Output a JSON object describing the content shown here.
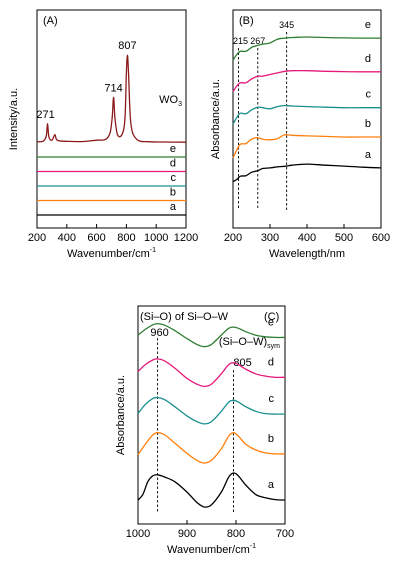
{
  "colors": {
    "a": "#000000",
    "b": "#ff7f0e",
    "c": "#1a8f8f",
    "d": "#e6197a",
    "e": "#2e7d32",
    "wo3": "#8b1a1a"
  },
  "chart_data": [
    {
      "panel": "(A)",
      "type": "line",
      "xlabel": "Wavenumber/cm",
      "xlabel_sup": "-1",
      "ylabel": "Intensity/a.u.",
      "xlim": [
        200,
        1200
      ],
      "xticks": [
        200,
        400,
        600,
        800,
        1000,
        1200
      ],
      "legend": "none",
      "peak_labels": [
        {
          "x": 271,
          "label": "271"
        },
        {
          "x": 714,
          "label": "714"
        },
        {
          "x": 807,
          "label": "807"
        }
      ],
      "series": [
        {
          "name": "WO",
          "name_sub": "3",
          "color_key": "wo3",
          "offset": 5,
          "x": [
            200,
            240,
            262,
            271,
            280,
            300,
            320,
            330,
            350,
            400,
            500,
            600,
            660,
            690,
            705,
            714,
            723,
            740,
            770,
            790,
            800,
            807,
            814,
            830,
            870,
            950,
            1050,
            1200
          ],
          "y": [
            0.05,
            0.08,
            0.4,
            1.2,
            0.35,
            0.15,
            0.5,
            0.2,
            0.1,
            0.08,
            0.06,
            0.15,
            0.2,
            0.6,
            1.6,
            2.9,
            1.6,
            0.5,
            0.5,
            1.5,
            4.5,
            5.6,
            4.5,
            1.2,
            0.2,
            0.05,
            0.03,
            0.02
          ]
        },
        {
          "name": "e",
          "color_key": "e",
          "offset": 4,
          "x": [
            200,
            1200
          ],
          "y": [
            0,
            0
          ]
        },
        {
          "name": "d",
          "color_key": "d",
          "offset": 3,
          "x": [
            200,
            1200
          ],
          "y": [
            0,
            0
          ]
        },
        {
          "name": "c",
          "color_key": "c",
          "offset": 2,
          "x": [
            200,
            1200
          ],
          "y": [
            0,
            0
          ]
        },
        {
          "name": "b",
          "color_key": "b",
          "offset": 1,
          "x": [
            200,
            1200
          ],
          "y": [
            0,
            0
          ]
        },
        {
          "name": "a",
          "color_key": "a",
          "offset": 0,
          "x": [
            200,
            1200
          ],
          "y": [
            0,
            0
          ]
        }
      ]
    },
    {
      "panel": "(B)",
      "type": "line",
      "xlabel": "Wavelength/nm",
      "ylabel": "Absorbance/a.u.",
      "xlim": [
        200,
        600
      ],
      "xticks": [
        200,
        300,
        400,
        500,
        600
      ],
      "legend": "none",
      "vlines": [
        {
          "x": 215,
          "label": "215"
        },
        {
          "x": 267,
          "label": "267"
        },
        {
          "x": 345,
          "label": "345"
        }
      ],
      "series": [
        {
          "name": "e",
          "color_key": "e",
          "offset": 4,
          "x": [
            200,
            210,
            220,
            235,
            250,
            267,
            280,
            300,
            320,
            340,
            360,
            400,
            450,
            500,
            550,
            600
          ],
          "y": [
            -1.1,
            -0.6,
            -0.3,
            -0.3,
            0.05,
            0.25,
            0.35,
            0.45,
            0.8,
            0.9,
            0.95,
            1.0,
            0.95,
            0.92,
            0.9,
            0.9
          ]
        },
        {
          "name": "d",
          "color_key": "d",
          "offset": 3,
          "x": [
            200,
            210,
            220,
            235,
            250,
            267,
            280,
            300,
            320,
            340,
            360,
            400,
            450,
            500,
            550,
            600
          ],
          "y": [
            -1.1,
            -0.6,
            -0.3,
            -0.3,
            0.05,
            0.3,
            0.3,
            0.45,
            0.6,
            0.75,
            0.8,
            0.8,
            0.75,
            0.72,
            0.7,
            0.7
          ]
        },
        {
          "name": "c",
          "color_key": "c",
          "offset": 2,
          "x": [
            200,
            210,
            220,
            235,
            250,
            267,
            280,
            300,
            320,
            340,
            360,
            400,
            450,
            500,
            550,
            600
          ],
          "y": [
            -1.2,
            -0.6,
            -0.2,
            -0.25,
            0.1,
            0.35,
            0.3,
            0.2,
            0.4,
            0.5,
            0.45,
            0.4,
            0.35,
            0.3,
            0.3,
            0.3
          ]
        },
        {
          "name": "b",
          "color_key": "b",
          "offset": 1,
          "x": [
            200,
            210,
            220,
            235,
            250,
            267,
            280,
            300,
            320,
            340,
            360,
            400,
            450,
            500,
            550,
            600
          ],
          "y": [
            -1.4,
            -0.7,
            -0.15,
            -0.1,
            0.3,
            0.45,
            0.3,
            0.25,
            0.35,
            0.7,
            0.65,
            0.6,
            0.55,
            0.5,
            0.5,
            0.5
          ]
        },
        {
          "name": "a",
          "color_key": "a",
          "offset": 0,
          "x": [
            200,
            210,
            220,
            235,
            250,
            267,
            280,
            300,
            320,
            340,
            360,
            400,
            450,
            500,
            550,
            600
          ],
          "y": [
            -0.7,
            -0.5,
            -0.2,
            -0.15,
            0.15,
            0.3,
            0.5,
            0.55,
            0.65,
            0.7,
            0.8,
            0.9,
            0.8,
            0.72,
            0.62,
            0.55
          ]
        }
      ]
    },
    {
      "panel": "(C)",
      "type": "line",
      "xlabel": "Wavenumber/cm",
      "xlabel_sup": "-1",
      "ylabel": "Absorbance/a.u.",
      "xlim": [
        1000,
        700
      ],
      "xticks": [
        1000,
        900,
        800,
        700
      ],
      "legend": "none",
      "annotation_top": "(Si–O) of Si–O–W",
      "annotation_sym": "(Si–O–W)",
      "annotation_sym_sub": "sym",
      "vlines": [
        {
          "x": 960,
          "label": "960"
        },
        {
          "x": 805,
          "label": "805"
        }
      ],
      "series": [
        {
          "name": "e",
          "color_key": "e",
          "offset": 4,
          "x": [
            1000,
            985,
            970,
            960,
            945,
            925,
            900,
            880,
            865,
            850,
            830,
            815,
            805,
            795,
            780,
            760,
            740,
            720,
            700
          ],
          "y": [
            -0.05,
            0.2,
            0.4,
            0.45,
            0.38,
            0.15,
            -0.2,
            -0.45,
            -0.55,
            -0.45,
            -0.05,
            0.25,
            0.3,
            0.25,
            0.1,
            -0.05,
            -0.12,
            -0.15,
            -0.15
          ]
        },
        {
          "name": "d",
          "color_key": "d",
          "offset": 3,
          "x": [
            1000,
            985,
            970,
            960,
            945,
            925,
            900,
            880,
            865,
            850,
            830,
            815,
            805,
            795,
            780,
            760,
            740,
            720,
            700
          ],
          "y": [
            0.0,
            0.3,
            0.5,
            0.55,
            0.45,
            0.15,
            -0.3,
            -0.55,
            -0.65,
            -0.55,
            -0.1,
            0.3,
            0.38,
            0.3,
            0.1,
            -0.1,
            -0.2,
            -0.25,
            -0.25
          ]
        },
        {
          "name": "c",
          "color_key": "c",
          "offset": 2,
          "x": [
            1000,
            985,
            970,
            960,
            945,
            925,
            900,
            880,
            865,
            850,
            830,
            815,
            805,
            795,
            780,
            760,
            740,
            720,
            700
          ],
          "y": [
            -0.2,
            0.2,
            0.45,
            0.5,
            0.4,
            0.1,
            -0.3,
            -0.55,
            -0.65,
            -0.55,
            -0.1,
            0.3,
            0.38,
            0.3,
            0.1,
            -0.1,
            -0.2,
            -0.22,
            -0.22
          ]
        },
        {
          "name": "b",
          "color_key": "b",
          "offset": 1,
          "x": [
            1000,
            985,
            970,
            960,
            945,
            925,
            900,
            880,
            865,
            850,
            830,
            815,
            805,
            795,
            780,
            760,
            740,
            720,
            700
          ],
          "y": [
            -0.35,
            0.1,
            0.5,
            0.6,
            0.5,
            0.15,
            -0.3,
            -0.6,
            -0.72,
            -0.6,
            -0.1,
            0.45,
            0.6,
            0.45,
            0.1,
            -0.15,
            -0.28,
            -0.32,
            -0.32
          ]
        },
        {
          "name": "a",
          "color_key": "a",
          "offset": 0,
          "x": [
            1000,
            990,
            980,
            970,
            960,
            945,
            925,
            900,
            880,
            865,
            850,
            830,
            815,
            805,
            795,
            780,
            760,
            740,
            720,
            700
          ],
          "y": [
            -0.7,
            -0.45,
            0.1,
            0.35,
            0.4,
            0.3,
            0.1,
            -0.35,
            -0.8,
            -1.0,
            -0.9,
            -0.35,
            0.3,
            0.48,
            0.35,
            -0.05,
            -0.45,
            -0.6,
            -0.68,
            -0.7
          ]
        }
      ]
    }
  ]
}
